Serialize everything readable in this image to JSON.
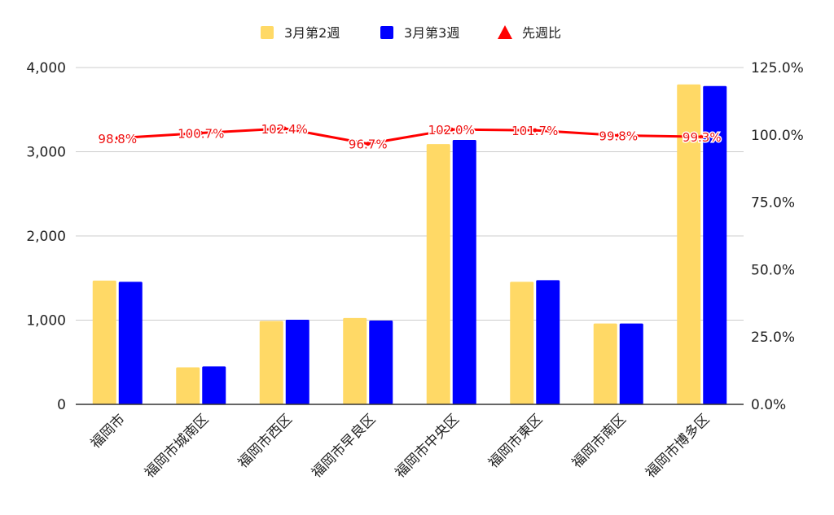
{
  "chart_data": {
    "type": "bar",
    "categories": [
      "福岡市",
      "福岡市城南区",
      "福岡市西区",
      "福岡市早良区",
      "福岡市中央区",
      "福岡市東区",
      "福岡市南区",
      "福岡市博多区"
    ],
    "series": [
      {
        "name": "3月第2週",
        "type": "bar",
        "axis": "left",
        "color": "#ffd966",
        "values": [
          1470,
          440,
          990,
          1025,
          3090,
          1455,
          960,
          3800
        ]
      },
      {
        "name": "3月第3週",
        "type": "bar",
        "axis": "left",
        "color": "#0000ff",
        "values": [
          1455,
          450,
          1005,
          995,
          3140,
          1475,
          960,
          3780
        ]
      },
      {
        "name": "先週比",
        "type": "line",
        "axis": "right",
        "color": "#ff0000",
        "values": [
          98.8,
          100.7,
          102.4,
          96.7,
          102.0,
          101.7,
          99.8,
          99.3
        ],
        "labels": [
          "98.8%",
          "100.7%",
          "102.4%",
          "96.7%",
          "102.0%",
          "101.7%",
          "99.8%",
          "99.3%"
        ]
      }
    ],
    "y_left": {
      "range": [
        0,
        4000
      ],
      "ticks": [
        0,
        1000,
        2000,
        3000,
        4000
      ],
      "tick_labels": [
        "0",
        "1,000",
        "2,000",
        "3,000",
        "4,000"
      ]
    },
    "y_right": {
      "range": [
        0,
        125
      ],
      "ticks": [
        0,
        25,
        50,
        75,
        100,
        125
      ],
      "tick_labels": [
        "0.0%",
        "25.0%",
        "50.0%",
        "75.0%",
        "100.0%",
        "125.0%"
      ]
    },
    "grid": true,
    "legend_position": "top"
  }
}
